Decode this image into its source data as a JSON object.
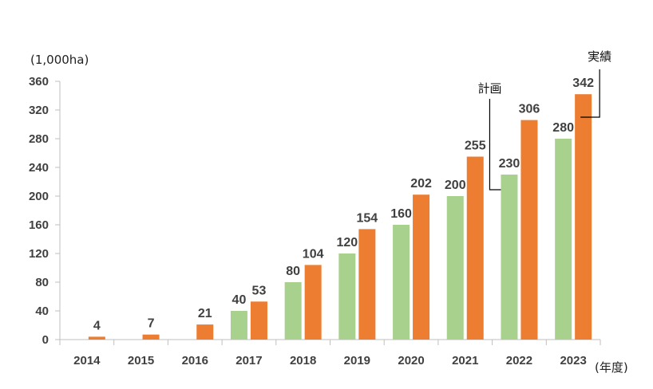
{
  "chart_data": {
    "type": "bar",
    "ylabel": "(1,000ha)",
    "xlabel": "(年度)",
    "ylim": [
      0,
      360
    ],
    "yticks": [
      0,
      40,
      80,
      120,
      160,
      200,
      240,
      280,
      320,
      360
    ],
    "categories": [
      "2014",
      "2015",
      "2016",
      "2017",
      "2018",
      "2019",
      "2020",
      "2021",
      "2022",
      "2023"
    ],
    "series": [
      {
        "name": "計画",
        "color": "#a9d18e",
        "values": [
          null,
          null,
          null,
          40,
          80,
          120,
          160,
          200,
          230,
          280
        ]
      },
      {
        "name": "実績",
        "color": "#ed7d31",
        "values": [
          4,
          7,
          21,
          53,
          104,
          154,
          202,
          255,
          306,
          342
        ]
      }
    ],
    "grid": false,
    "legend": "callouts"
  }
}
